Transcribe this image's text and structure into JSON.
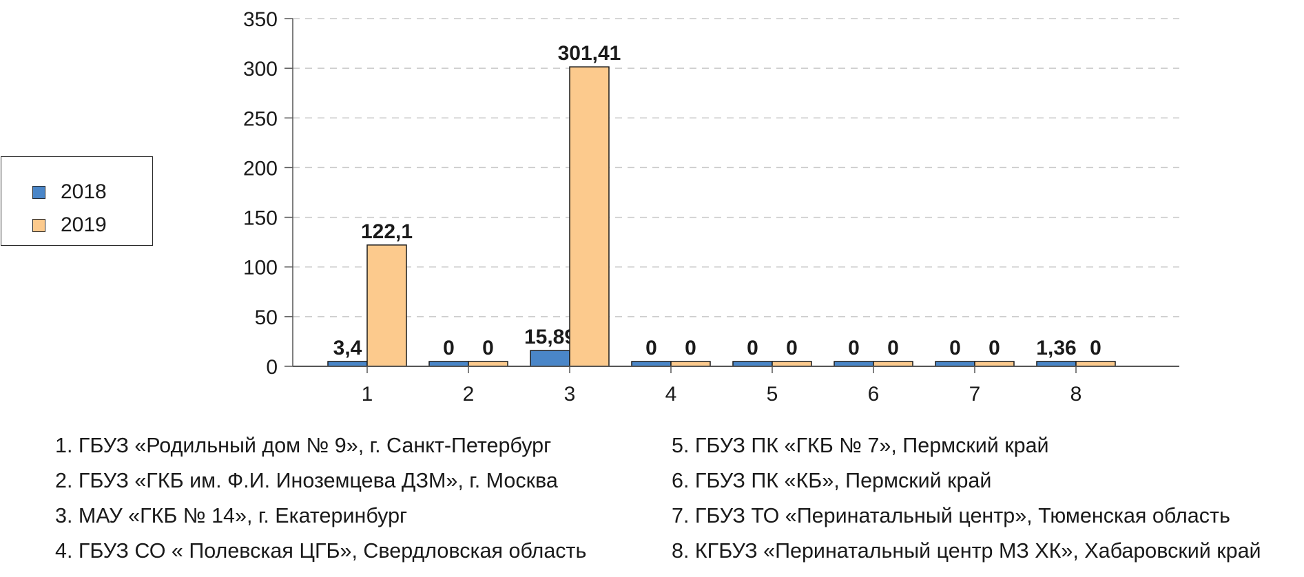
{
  "chart_data": {
    "type": "bar",
    "categories": [
      "1",
      "2",
      "3",
      "4",
      "5",
      "6",
      "7",
      "8"
    ],
    "series": [
      {
        "name": "2018",
        "color": "#4a86c8",
        "values": [
          3.4,
          0,
          15.89,
          0,
          0,
          0,
          0,
          1.36
        ],
        "labels": [
          "3,4",
          "0",
          "15,89",
          "0",
          "0",
          "0",
          "0",
          "1,36"
        ]
      },
      {
        "name": "2019",
        "color": "#fcca8d",
        "values": [
          122.1,
          0,
          301.41,
          0,
          0,
          0,
          0,
          0
        ],
        "labels": [
          "122,1",
          "0",
          "301,41",
          "0",
          "0",
          "0",
          "0",
          "0"
        ]
      }
    ],
    "yticks": [
      "0",
      "50",
      "100",
      "150",
      "200",
      "250",
      "300",
      "350"
    ],
    "ylim": [
      0,
      350
    ],
    "grid": true,
    "legend_position": "left"
  },
  "notes": {
    "left": [
      "1. ГБУЗ «Родильный дом № 9», г. Санкт-Петербург",
      "2. ГБУЗ «ГКБ им. Ф.И. Иноземцева ДЗМ», г. Москва",
      "3. МАУ «ГКБ № 14», г. Екатеринбург",
      "4. ГБУЗ СО « Полевская ЦГБ», Свердловская область"
    ],
    "right": [
      "5. ГБУЗ ПК «ГКБ № 7», Пермский край",
      "6. ГБУЗ ПК «КБ», Пермский край",
      "7. ГБУЗ ТО «Перинатальный центр», Тюменская область",
      "8. КГБУЗ «Перинатальный центр МЗ ХК», Хабаровский край"
    ]
  }
}
